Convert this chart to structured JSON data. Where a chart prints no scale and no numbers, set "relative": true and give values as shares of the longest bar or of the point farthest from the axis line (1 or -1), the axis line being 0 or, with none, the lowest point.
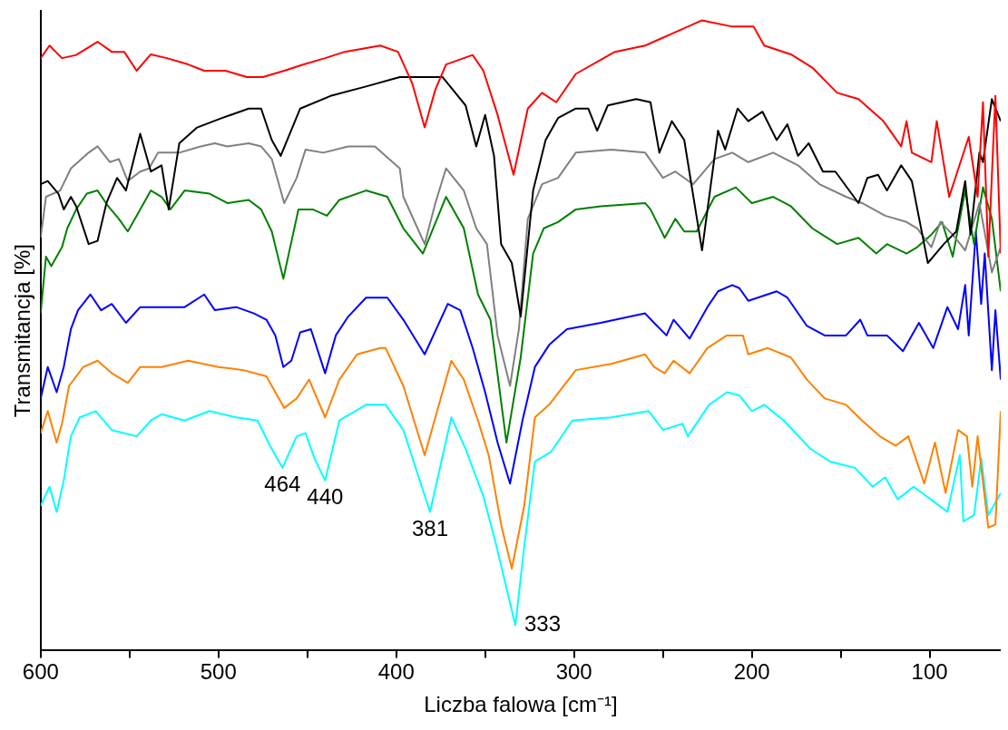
{
  "chart_data": {
    "type": "line",
    "xlabel": "Liczba falowa [cm⁻¹]",
    "ylabel": "Transmitancja [%]",
    "relative": true,
    "grid": false,
    "legend": false,
    "marker": "none",
    "line_style": "solid",
    "xlim": [
      600,
      60
    ],
    "xticks": [
      600,
      {
        "value": 550,
        "label": null
      },
      500,
      {
        "value": 450,
        "label": null
      },
      400,
      {
        "value": 350,
        "label": null
      },
      300,
      {
        "value": 250,
        "label": null
      },
      200,
      {
        "value": 150,
        "label": null
      },
      100
    ],
    "annotations": [
      {
        "text": "464",
        "x": 464,
        "y": 0.29
      },
      {
        "text": "440",
        "x": 440,
        "y": 0.27
      },
      {
        "text": "381",
        "x": 381,
        "y": 0.22
      },
      {
        "text": "333",
        "x": 333,
        "y": 0.04
      }
    ],
    "series": [
      {
        "color": "#ff0000",
        "x": [
          600,
          595,
          588,
          580,
          568,
          560,
          553,
          546,
          538,
          529,
          517,
          508,
          496,
          484,
          475,
          463,
          452,
          440,
          429,
          409,
          399,
          391,
          384,
          378,
          372,
          357,
          351,
          343,
          334,
          326,
          318,
          310,
          299,
          277,
          260,
          240,
          228,
          211,
          199,
          193,
          178,
          166,
          152,
          140,
          126,
          116,
          113,
          110,
          99,
          96,
          89,
          78,
          73,
          70,
          67,
          63,
          60
        ],
        "values": [
          0.94,
          0.96,
          0.94,
          0.945,
          0.966,
          0.95,
          0.95,
          0.92,
          0.946,
          0.94,
          0.93,
          0.92,
          0.92,
          0.91,
          0.91,
          0.92,
          0.93,
          0.94,
          0.95,
          0.96,
          0.95,
          0.9,
          0.83,
          0.89,
          0.93,
          0.945,
          0.92,
          0.85,
          0.755,
          0.86,
          0.885,
          0.87,
          0.915,
          0.95,
          0.96,
          0.985,
          1.0,
          0.99,
          0.99,
          0.96,
          0.946,
          0.925,
          0.885,
          0.875,
          0.84,
          0.8,
          0.84,
          0.79,
          0.775,
          0.84,
          0.72,
          0.815,
          0.72,
          0.87,
          0.625,
          0.88,
          0.63
        ]
      },
      {
        "color": "#000000",
        "x": [
          600,
          596,
          590,
          587,
          583,
          580,
          573,
          568,
          563,
          557,
          552,
          544,
          538,
          532,
          528,
          522,
          512,
          498,
          483,
          476,
          470,
          465,
          454,
          437,
          417,
          398,
          374,
          361,
          355,
          350,
          345,
          341,
          335,
          330,
          323,
          316,
          309,
          299,
          292,
          287,
          281,
          265,
          257,
          252,
          245,
          238,
          228,
          219,
          215,
          208,
          202,
          194,
          186,
          180,
          174,
          168,
          160,
          153,
          140,
          135,
          129,
          124,
          116,
          110,
          101,
          92,
          85,
          80,
          77,
          72,
          70,
          65,
          60
        ],
        "values": [
          0.74,
          0.745,
          0.725,
          0.7,
          0.72,
          0.705,
          0.645,
          0.65,
          0.71,
          0.75,
          0.73,
          0.82,
          0.76,
          0.77,
          0.7,
          0.805,
          0.83,
          0.845,
          0.86,
          0.86,
          0.81,
          0.785,
          0.86,
          0.88,
          0.895,
          0.91,
          0.91,
          0.865,
          0.8,
          0.85,
          0.785,
          0.645,
          0.615,
          0.53,
          0.73,
          0.81,
          0.845,
          0.86,
          0.86,
          0.825,
          0.865,
          0.875,
          0.87,
          0.79,
          0.84,
          0.81,
          0.635,
          0.825,
          0.795,
          0.86,
          0.84,
          0.855,
          0.81,
          0.835,
          0.785,
          0.805,
          0.76,
          0.76,
          0.71,
          0.75,
          0.755,
          0.73,
          0.77,
          0.745,
          0.615,
          0.645,
          0.665,
          0.745,
          0.66,
          0.79,
          0.775,
          0.875,
          0.84
        ]
      },
      {
        "color": "#808080",
        "x": [
          600,
          597,
          589,
          583,
          573,
          568,
          561,
          556,
          551,
          544,
          539,
          534,
          522,
          510,
          502,
          495,
          483,
          476,
          470,
          463,
          456,
          451,
          441,
          427,
          412,
          398,
          396,
          384,
          378,
          372,
          362,
          355,
          349,
          343,
          336,
          331,
          326,
          318,
          309,
          299,
          279,
          260,
          250,
          243,
          233,
          221,
          211,
          202,
          188,
          174,
          162,
          147,
          138,
          125,
          113,
          107,
          99,
          94,
          87,
          80,
          72,
          65,
          60
        ],
        "values": [
          0.655,
          0.72,
          0.73,
          0.765,
          0.79,
          0.8,
          0.775,
          0.78,
          0.745,
          0.76,
          0.765,
          0.79,
          0.79,
          0.8,
          0.805,
          0.8,
          0.805,
          0.8,
          0.78,
          0.71,
          0.75,
          0.795,
          0.79,
          0.8,
          0.8,
          0.765,
          0.72,
          0.645,
          0.71,
          0.765,
          0.73,
          0.67,
          0.645,
          0.5,
          0.42,
          0.51,
          0.685,
          0.74,
          0.75,
          0.79,
          0.795,
          0.79,
          0.75,
          0.76,
          0.74,
          0.78,
          0.79,
          0.775,
          0.79,
          0.77,
          0.74,
          0.72,
          0.71,
          0.69,
          0.68,
          0.67,
          0.64,
          0.68,
          0.66,
          0.635,
          0.71,
          0.6,
          0.64
        ]
      },
      {
        "color": "#008000",
        "x": [
          600,
          597,
          594,
          588,
          585,
          580,
          574,
          568,
          562,
          556,
          551,
          545,
          538,
          532,
          527,
          519,
          505,
          495,
          483,
          476,
          470,
          463.5,
          455,
          447,
          439,
          432,
          417,
          405,
          396,
          385,
          372,
          362,
          354,
          347,
          338,
          330,
          323,
          317,
          309,
          299,
          285,
          260,
          257,
          249,
          243,
          238,
          231,
          221,
          209,
          200,
          188,
          178,
          166,
          152,
          140,
          130,
          124,
          113,
          107,
          99,
          93,
          87,
          80,
          75,
          70,
          65,
          60
        ],
        "values": [
          0.535,
          0.625,
          0.61,
          0.64,
          0.67,
          0.7,
          0.725,
          0.73,
          0.705,
          0.685,
          0.665,
          0.695,
          0.73,
          0.72,
          0.7,
          0.73,
          0.725,
          0.71,
          0.715,
          0.7,
          0.665,
          0.59,
          0.7,
          0.7,
          0.69,
          0.715,
          0.73,
          0.72,
          0.67,
          0.63,
          0.72,
          0.67,
          0.565,
          0.525,
          0.33,
          0.465,
          0.63,
          0.67,
          0.68,
          0.7,
          0.705,
          0.71,
          0.7,
          0.655,
          0.685,
          0.665,
          0.665,
          0.72,
          0.735,
          0.71,
          0.72,
          0.705,
          0.67,
          0.645,
          0.655,
          0.63,
          0.645,
          0.63,
          0.64,
          0.66,
          0.68,
          0.625,
          0.73,
          0.645,
          0.735,
          0.685,
          0.57
        ]
      },
      {
        "color": "#0000ff",
        "x": [
          600,
          596,
          591,
          587,
          583,
          579,
          572,
          566,
          560,
          552,
          544,
          532,
          519,
          508,
          502,
          490,
          480,
          473,
          468,
          463.5,
          459,
          454,
          448,
          440,
          434,
          427,
          417,
          405,
          396,
          384,
          371,
          364,
          357,
          350,
          343,
          336,
          329,
          322,
          314,
          304,
          285,
          260,
          255,
          248,
          244,
          235,
          225,
          219,
          211,
          207,
          202,
          186,
          180,
          169,
          159,
          147,
          139,
          135,
          124,
          115,
          106,
          98,
          90,
          84,
          80,
          78,
          74,
          71,
          69,
          65,
          63,
          60
        ],
        "values": [
          0.4,
          0.45,
          0.41,
          0.45,
          0.51,
          0.54,
          0.565,
          0.54,
          0.55,
          0.52,
          0.545,
          0.545,
          0.545,
          0.565,
          0.54,
          0.545,
          0.535,
          0.525,
          0.5,
          0.45,
          0.46,
          0.505,
          0.51,
          0.44,
          0.5,
          0.53,
          0.56,
          0.56,
          0.525,
          0.47,
          0.55,
          0.54,
          0.48,
          0.41,
          0.33,
          0.265,
          0.365,
          0.45,
          0.485,
          0.51,
          0.52,
          0.535,
          0.52,
          0.5,
          0.525,
          0.495,
          0.545,
          0.57,
          0.58,
          0.575,
          0.555,
          0.57,
          0.56,
          0.515,
          0.5,
          0.5,
          0.525,
          0.5,
          0.5,
          0.475,
          0.52,
          0.48,
          0.545,
          0.51,
          0.58,
          0.5,
          0.665,
          0.55,
          0.63,
          0.445,
          0.54,
          0.43
        ]
      },
      {
        "color": "#ff8000",
        "x": [
          600,
          596,
          591,
          588,
          584,
          576,
          568,
          560,
          551,
          544,
          532,
          517,
          500,
          486,
          473,
          467,
          463,
          456,
          449,
          440,
          432,
          422,
          409,
          406,
          396,
          384,
          369,
          362,
          354,
          348,
          341,
          335,
          328,
          322,
          314,
          299,
          279,
          260,
          255,
          249,
          244,
          235,
          225,
          214,
          205,
          202,
          191,
          178,
          169,
          159,
          147,
          138,
          128,
          119,
          112,
          103,
          97,
          91,
          84,
          79,
          76,
          73,
          67,
          63,
          60
        ],
        "values": [
          0.345,
          0.38,
          0.33,
          0.36,
          0.42,
          0.45,
          0.46,
          0.44,
          0.425,
          0.45,
          0.45,
          0.46,
          0.45,
          0.445,
          0.435,
          0.405,
          0.385,
          0.4,
          0.43,
          0.37,
          0.43,
          0.47,
          0.48,
          0.48,
          0.42,
          0.31,
          0.46,
          0.43,
          0.365,
          0.31,
          0.2,
          0.13,
          0.23,
          0.37,
          0.39,
          0.445,
          0.455,
          0.47,
          0.45,
          0.44,
          0.46,
          0.44,
          0.48,
          0.5,
          0.5,
          0.47,
          0.48,
          0.465,
          0.43,
          0.4,
          0.39,
          0.365,
          0.34,
          0.325,
          0.34,
          0.265,
          0.33,
          0.25,
          0.35,
          0.34,
          0.26,
          0.34,
          0.195,
          0.2,
          0.38
        ]
      },
      {
        "color": "#00ffff",
        "x": [
          600,
          595,
          591,
          587,
          583,
          578,
          569,
          560,
          546,
          538,
          532,
          519,
          505,
          490,
          478,
          471,
          464,
          456,
          451,
          446,
          440,
          432,
          417,
          406,
          396,
          381,
          369,
          361,
          351,
          344,
          333,
          328,
          322,
          313,
          301,
          279,
          258,
          250,
          239,
          236,
          224,
          214,
          207,
          200,
          193,
          182,
          167,
          156,
          142,
          132,
          125,
          118,
          109,
          97,
          90,
          83,
          81,
          75,
          71,
          67,
          60
        ],
        "values": [
          0.23,
          0.26,
          0.22,
          0.27,
          0.34,
          0.37,
          0.38,
          0.35,
          0.34,
          0.365,
          0.375,
          0.365,
          0.38,
          0.37,
          0.365,
          0.325,
          0.29,
          0.34,
          0.345,
          0.305,
          0.27,
          0.365,
          0.39,
          0.39,
          0.35,
          0.22,
          0.37,
          0.32,
          0.245,
          0.17,
          0.04,
          0.165,
          0.3,
          0.315,
          0.365,
          0.37,
          0.38,
          0.35,
          0.36,
          0.34,
          0.39,
          0.41,
          0.405,
          0.38,
          0.39,
          0.365,
          0.32,
          0.3,
          0.29,
          0.26,
          0.275,
          0.24,
          0.26,
          0.235,
          0.22,
          0.31,
          0.205,
          0.215,
          0.305,
          0.215,
          0.25
        ]
      }
    ]
  }
}
